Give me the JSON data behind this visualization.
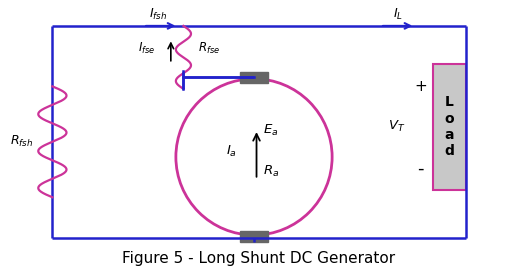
{
  "title": "Figure 5 - Long Shunt DC Generator",
  "title_fontsize": 11,
  "blue": "#2222CC",
  "pink": "#CC3399",
  "dark_gray": "#666666",
  "light_gray": "#C8C8C8",
  "bg_color": "#FFFFFF",
  "text_color": "#000000",
  "figsize": [
    5.08,
    2.69
  ],
  "dpi": 100,
  "xlim": [
    0,
    10
  ],
  "ylim": [
    0,
    5.3
  ]
}
